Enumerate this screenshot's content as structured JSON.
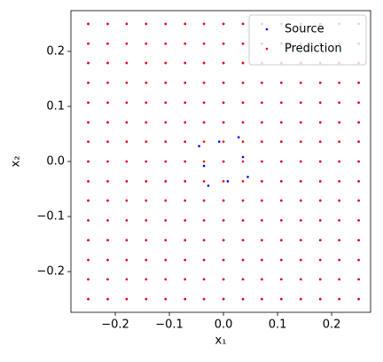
{
  "chart_data": {
    "type": "scatter",
    "x_label": "x₁",
    "y_label": "x₂",
    "xlim": [
      -0.282,
      0.272
    ],
    "ylim": [
      -0.274,
      0.274
    ],
    "xticks": [
      {
        "value": -0.2,
        "label": "−0.2"
      },
      {
        "value": -0.1,
        "label": "−0.1"
      },
      {
        "value": 0,
        "label": "0.0"
      },
      0.1,
      0.2
    ],
    "yticks": [
      {
        "value": -0.2,
        "label": "−0.2"
      },
      {
        "value": -0.1,
        "label": "−0.1"
      },
      {
        "value": 0,
        "label": "0.0"
      },
      0.1,
      0.2
    ],
    "legend": "upper right",
    "series": [
      {
        "name": "Source",
        "color": "#0000ff",
        "x": [
          -0.25,
          -0.214,
          -0.179,
          -0.143,
          -0.107,
          -0.071,
          -0.036,
          0,
          0.036,
          0.071,
          0.107,
          0.143,
          0.179,
          0.214,
          0.25,
          -0.25,
          -0.214,
          -0.179,
          -0.143,
          -0.107,
          -0.071,
          -0.036,
          0,
          0.036,
          0.071,
          0.107,
          0.143,
          0.179,
          0.214,
          0.25,
          -0.25,
          -0.214,
          -0.179,
          -0.143,
          -0.107,
          -0.071,
          -0.036,
          0,
          0.036,
          0.071,
          0.107,
          0.143,
          0.179,
          0.214,
          0.25,
          -0.25,
          -0.214,
          -0.179,
          -0.143,
          -0.107,
          -0.071,
          -0.036,
          0,
          0.036,
          0.071,
          0.107,
          0.143,
          0.179,
          0.214,
          0.25,
          -0.25,
          -0.214,
          -0.179,
          -0.143,
          -0.107,
          -0.071,
          -0.036,
          0,
          0.036,
          0.071,
          0.107,
          0.143,
          0.179,
          0.214,
          0.25,
          -0.25,
          -0.214,
          -0.179,
          -0.143,
          -0.107,
          -0.071,
          -0.036,
          0,
          0.036,
          0.071,
          0.107,
          0.143,
          0.179,
          0.214,
          0.25,
          -0.25,
          -0.214,
          -0.179,
          -0.143,
          -0.107,
          -0.071,
          -0.045,
          -0.008,
          0.028,
          0.071,
          0.107,
          0.143,
          0.179,
          0.214,
          0.25,
          -0.25,
          -0.214,
          -0.179,
          -0.143,
          -0.107,
          -0.071,
          -0.036,
          0,
          0.036,
          0.071,
          0.107,
          0.143,
          0.179,
          0.214,
          0.25,
          -0.25,
          -0.214,
          -0.179,
          -0.143,
          -0.107,
          -0.071,
          -0.028,
          0.008,
          0.045,
          0.071,
          0.107,
          0.143,
          0.179,
          0.214,
          0.25,
          -0.25,
          -0.214,
          -0.179,
          -0.143,
          -0.107,
          -0.071,
          -0.036,
          0,
          0.036,
          0.071,
          0.107,
          0.143,
          0.179,
          0.214,
          0.25,
          -0.25,
          -0.214,
          -0.179,
          -0.143,
          -0.107,
          -0.071,
          -0.036,
          0,
          0.036,
          0.071,
          0.107,
          0.143,
          0.179,
          0.214,
          0.25,
          -0.25,
          -0.214,
          -0.179,
          -0.143,
          -0.107,
          -0.071,
          -0.036,
          0,
          0.036,
          0.071,
          0.107,
          0.143,
          0.179,
          0.214,
          0.25,
          -0.25,
          -0.214,
          -0.179,
          -0.143,
          -0.107,
          -0.071,
          -0.036,
          0,
          0.036,
          0.071,
          0.107,
          0.143,
          0.179,
          0.214,
          0.25,
          -0.25,
          -0.214,
          -0.179,
          -0.143,
          -0.107,
          -0.071,
          -0.036,
          0,
          0.036,
          0.071,
          0.107,
          0.143,
          0.179,
          0.214,
          0.25,
          -0.25,
          -0.214,
          -0.179,
          -0.143,
          -0.107,
          -0.071,
          -0.036,
          0,
          0.036,
          0.071,
          0.107,
          0.143,
          0.179,
          0.214,
          0.25
        ],
        "y": [
          0.25,
          0.25,
          0.25,
          0.25,
          0.25,
          0.25,
          0.25,
          0.25,
          0.25,
          0.25,
          0.25,
          0.25,
          0.25,
          0.25,
          0.25,
          0.214,
          0.214,
          0.214,
          0.214,
          0.214,
          0.214,
          0.214,
          0.214,
          0.214,
          0.214,
          0.214,
          0.214,
          0.214,
          0.214,
          0.214,
          0.179,
          0.179,
          0.179,
          0.179,
          0.179,
          0.179,
          0.179,
          0.179,
          0.179,
          0.179,
          0.179,
          0.179,
          0.179,
          0.179,
          0.179,
          0.143,
          0.143,
          0.143,
          0.143,
          0.143,
          0.143,
          0.143,
          0.143,
          0.143,
          0.143,
          0.143,
          0.143,
          0.143,
          0.143,
          0.143,
          0.107,
          0.107,
          0.107,
          0.107,
          0.107,
          0.107,
          0.107,
          0.107,
          0.107,
          0.107,
          0.107,
          0.107,
          0.107,
          0.107,
          0.107,
          0.071,
          0.071,
          0.071,
          0.071,
          0.071,
          0.071,
          0.071,
          0.071,
          0.071,
          0.071,
          0.071,
          0.071,
          0.071,
          0.071,
          0.071,
          0.036,
          0.036,
          0.036,
          0.036,
          0.036,
          0.036,
          0.028,
          0.036,
          0.044,
          0.036,
          0.036,
          0.036,
          0.036,
          0.036,
          0.036,
          0,
          0,
          0,
          0,
          0,
          0,
          -0.008,
          0,
          0.008,
          0,
          0,
          0,
          0,
          0,
          0,
          -0.036,
          -0.036,
          -0.036,
          -0.036,
          -0.036,
          -0.036,
          -0.044,
          -0.036,
          -0.028,
          -0.036,
          -0.036,
          -0.036,
          -0.036,
          -0.036,
          -0.036,
          -0.071,
          -0.071,
          -0.071,
          -0.071,
          -0.071,
          -0.071,
          -0.071,
          -0.071,
          -0.071,
          -0.071,
          -0.071,
          -0.071,
          -0.071,
          -0.071,
          -0.071,
          -0.107,
          -0.107,
          -0.107,
          -0.107,
          -0.107,
          -0.107,
          -0.107,
          -0.107,
          -0.107,
          -0.107,
          -0.107,
          -0.107,
          -0.107,
          -0.107,
          -0.107,
          -0.143,
          -0.143,
          -0.143,
          -0.143,
          -0.143,
          -0.143,
          -0.143,
          -0.143,
          -0.143,
          -0.143,
          -0.143,
          -0.143,
          -0.143,
          -0.143,
          -0.143,
          -0.179,
          -0.179,
          -0.179,
          -0.179,
          -0.179,
          -0.179,
          -0.179,
          -0.179,
          -0.179,
          -0.179,
          -0.179,
          -0.179,
          -0.179,
          -0.179,
          -0.179,
          -0.214,
          -0.214,
          -0.214,
          -0.214,
          -0.214,
          -0.214,
          -0.214,
          -0.214,
          -0.214,
          -0.214,
          -0.214,
          -0.214,
          -0.214,
          -0.214,
          -0.214,
          -0.25,
          -0.25,
          -0.25,
          -0.25,
          -0.25,
          -0.25,
          -0.25,
          -0.25,
          -0.25,
          -0.25,
          -0.25,
          -0.25,
          -0.25,
          -0.25,
          -0.25
        ]
      },
      {
        "name": "Prediction",
        "color": "#ff0000",
        "x": [
          -0.25,
          -0.214,
          -0.179,
          -0.143,
          -0.107,
          -0.071,
          -0.036,
          0,
          0.036,
          0.071,
          0.107,
          0.143,
          0.179,
          0.214,
          0.25,
          -0.25,
          -0.214,
          -0.179,
          -0.143,
          -0.107,
          -0.071,
          -0.036,
          0,
          0.036,
          0.071,
          0.107,
          0.143,
          0.179,
          0.214,
          0.25,
          -0.25,
          -0.214,
          -0.179,
          -0.143,
          -0.107,
          -0.071,
          -0.036,
          0,
          0.036,
          0.071,
          0.107,
          0.143,
          0.179,
          0.214,
          0.25,
          -0.25,
          -0.214,
          -0.179,
          -0.143,
          -0.107,
          -0.071,
          -0.036,
          0,
          0.036,
          0.071,
          0.107,
          0.143,
          0.179,
          0.214,
          0.25,
          -0.25,
          -0.214,
          -0.179,
          -0.143,
          -0.107,
          -0.071,
          -0.036,
          0,
          0.036,
          0.071,
          0.107,
          0.143,
          0.179,
          0.214,
          0.25,
          -0.25,
          -0.214,
          -0.179,
          -0.143,
          -0.107,
          -0.071,
          -0.036,
          0,
          0.036,
          0.071,
          0.107,
          0.143,
          0.179,
          0.214,
          0.25,
          -0.25,
          -0.214,
          -0.179,
          -0.143,
          -0.107,
          -0.071,
          -0.036,
          0,
          0.036,
          0.071,
          0.107,
          0.143,
          0.179,
          0.214,
          0.25,
          -0.25,
          -0.214,
          -0.179,
          -0.143,
          -0.107,
          -0.071,
          -0.036,
          0,
          0.036,
          0.071,
          0.107,
          0.143,
          0.179,
          0.214,
          0.25,
          -0.25,
          -0.214,
          -0.179,
          -0.143,
          -0.107,
          -0.071,
          -0.036,
          0,
          0.036,
          0.071,
          0.107,
          0.143,
          0.179,
          0.214,
          0.25,
          -0.25,
          -0.214,
          -0.179,
          -0.143,
          -0.107,
          -0.071,
          -0.036,
          0,
          0.036,
          0.071,
          0.107,
          0.143,
          0.179,
          0.214,
          0.25,
          -0.25,
          -0.214,
          -0.179,
          -0.143,
          -0.107,
          -0.071,
          -0.036,
          0,
          0.036,
          0.071,
          0.107,
          0.143,
          0.179,
          0.214,
          0.25,
          -0.25,
          -0.214,
          -0.179,
          -0.143,
          -0.107,
          -0.071,
          -0.036,
          0,
          0.036,
          0.071,
          0.107,
          0.143,
          0.179,
          0.214,
          0.25,
          -0.25,
          -0.214,
          -0.179,
          -0.143,
          -0.107,
          -0.071,
          -0.036,
          0,
          0.036,
          0.071,
          0.107,
          0.143,
          0.179,
          0.214,
          0.25,
          -0.25,
          -0.214,
          -0.179,
          -0.143,
          -0.107,
          -0.071,
          -0.036,
          0,
          0.036,
          0.071,
          0.107,
          0.143,
          0.179,
          0.214,
          0.25,
          -0.25,
          -0.214,
          -0.179,
          -0.143,
          -0.107,
          -0.071,
          -0.036,
          0,
          0.036,
          0.071,
          0.107,
          0.143,
          0.179,
          0.214,
          0.25
        ],
        "y": [
          0.25,
          0.25,
          0.25,
          0.25,
          0.25,
          0.25,
          0.25,
          0.25,
          0.25,
          0.25,
          0.25,
          0.25,
          0.25,
          0.25,
          0.25,
          0.214,
          0.214,
          0.214,
          0.214,
          0.214,
          0.214,
          0.214,
          0.214,
          0.214,
          0.214,
          0.214,
          0.214,
          0.214,
          0.214,
          0.214,
          0.179,
          0.179,
          0.179,
          0.179,
          0.179,
          0.179,
          0.179,
          0.179,
          0.179,
          0.179,
          0.179,
          0.179,
          0.179,
          0.179,
          0.179,
          0.143,
          0.143,
          0.143,
          0.143,
          0.143,
          0.143,
          0.143,
          0.143,
          0.143,
          0.143,
          0.143,
          0.143,
          0.143,
          0.143,
          0.143,
          0.107,
          0.107,
          0.107,
          0.107,
          0.107,
          0.107,
          0.107,
          0.107,
          0.107,
          0.107,
          0.107,
          0.107,
          0.107,
          0.107,
          0.107,
          0.071,
          0.071,
          0.071,
          0.071,
          0.071,
          0.071,
          0.071,
          0.071,
          0.071,
          0.071,
          0.071,
          0.071,
          0.071,
          0.071,
          0.071,
          0.036,
          0.036,
          0.036,
          0.036,
          0.036,
          0.036,
          0.036,
          0.036,
          0.036,
          0.036,
          0.036,
          0.036,
          0.036,
          0.036,
          0.036,
          0,
          0,
          0,
          0,
          0,
          0,
          0,
          0,
          0,
          0,
          0,
          0,
          0,
          0,
          0,
          -0.036,
          -0.036,
          -0.036,
          -0.036,
          -0.036,
          -0.036,
          -0.036,
          -0.036,
          -0.036,
          -0.036,
          -0.036,
          -0.036,
          -0.036,
          -0.036,
          -0.036,
          -0.071,
          -0.071,
          -0.071,
          -0.071,
          -0.071,
          -0.071,
          -0.071,
          -0.071,
          -0.071,
          -0.071,
          -0.071,
          -0.071,
          -0.071,
          -0.071,
          -0.071,
          -0.107,
          -0.107,
          -0.107,
          -0.107,
          -0.107,
          -0.107,
          -0.107,
          -0.107,
          -0.107,
          -0.107,
          -0.107,
          -0.107,
          -0.107,
          -0.107,
          -0.107,
          -0.143,
          -0.143,
          -0.143,
          -0.143,
          -0.143,
          -0.143,
          -0.143,
          -0.143,
          -0.143,
          -0.143,
          -0.143,
          -0.143,
          -0.143,
          -0.143,
          -0.143,
          -0.179,
          -0.179,
          -0.179,
          -0.179,
          -0.179,
          -0.179,
          -0.179,
          -0.179,
          -0.179,
          -0.179,
          -0.179,
          -0.179,
          -0.179,
          -0.179,
          -0.179,
          -0.214,
          -0.214,
          -0.214,
          -0.214,
          -0.214,
          -0.214,
          -0.214,
          -0.214,
          -0.214,
          -0.214,
          -0.214,
          -0.214,
          -0.214,
          -0.214,
          -0.214,
          -0.25,
          -0.25,
          -0.25,
          -0.25,
          -0.25,
          -0.25,
          -0.25,
          -0.25,
          -0.25,
          -0.25,
          -0.25,
          -0.25,
          -0.25,
          -0.25,
          -0.25
        ]
      }
    ]
  }
}
